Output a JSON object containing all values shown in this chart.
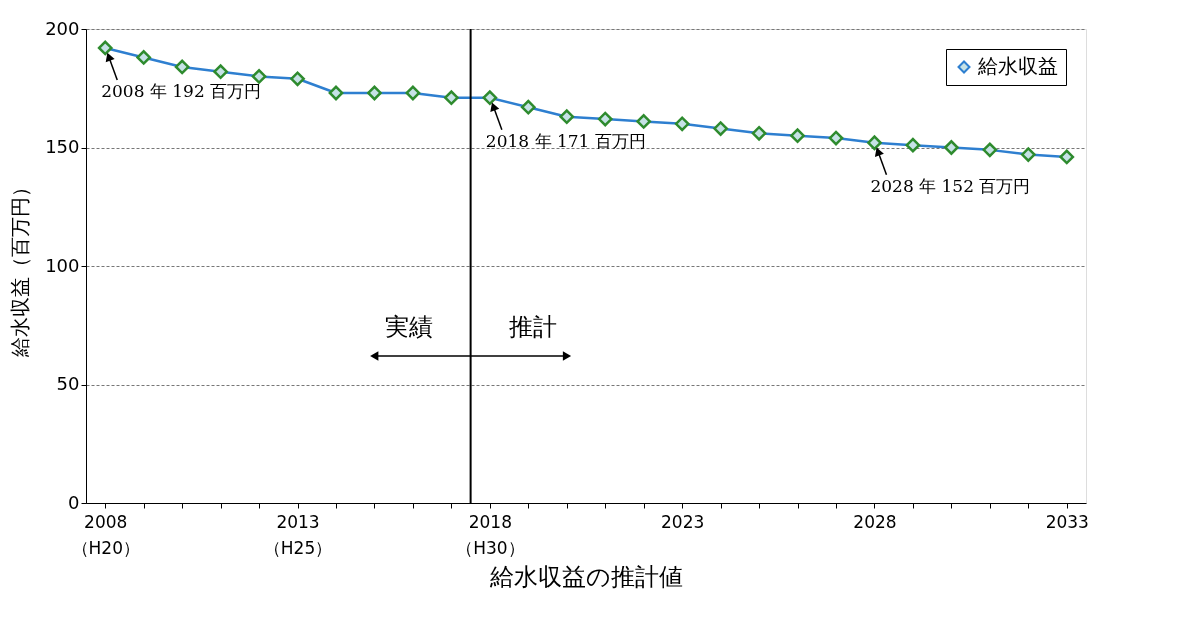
{
  "chart_data": {
    "type": "line",
    "title": "給水収益の推計値",
    "ylabel": "給水収益（百万円）",
    "x": [
      2008,
      2009,
      2010,
      2011,
      2012,
      2013,
      2014,
      2015,
      2016,
      2017,
      2018,
      2019,
      2020,
      2021,
      2022,
      2023,
      2024,
      2025,
      2026,
      2027,
      2028,
      2029,
      2030,
      2031,
      2032,
      2033
    ],
    "series": [
      {
        "name": "給水収益",
        "color": "#2e7fd0",
        "values": [
          192,
          188,
          184,
          182,
          180,
          179,
          173,
          173,
          173,
          171,
          171,
          167,
          163,
          162,
          161,
          160,
          158,
          156,
          155,
          154,
          152,
          151,
          150,
          149,
          147,
          146
        ]
      }
    ],
    "xlim": [
      2007.5,
      2033.5
    ],
    "xticks": [
      {
        "value": 2008,
        "label": "2008\n（H20）"
      },
      {
        "value": 2009,
        "label": null
      },
      {
        "value": 2010,
        "label": null
      },
      {
        "value": 2011,
        "label": null
      },
      {
        "value": 2012,
        "label": null
      },
      {
        "value": 2013,
        "label": "2013\n（H25）"
      },
      {
        "value": 2014,
        "label": null
      },
      {
        "value": 2015,
        "label": null
      },
      {
        "value": 2016,
        "label": null
      },
      {
        "value": 2017,
        "label": null
      },
      {
        "value": 2018,
        "label": "2018\n（H30）"
      },
      {
        "value": 2019,
        "label": null
      },
      {
        "value": 2020,
        "label": null
      },
      {
        "value": 2021,
        "label": null
      },
      {
        "value": 2022,
        "label": null
      },
      2023,
      {
        "value": 2024,
        "label": null
      },
      {
        "value": 2025,
        "label": null
      },
      {
        "value": 2026,
        "label": null
      },
      {
        "value": 2027,
        "label": null
      },
      2028,
      {
        "value": 2029,
        "label": null
      },
      {
        "value": 2030,
        "label": null
      },
      {
        "value": 2031,
        "label": null
      },
      {
        "value": 2032,
        "label": null
      },
      2033
    ],
    "ylim": [
      0,
      200
    ],
    "yticks": [
      0,
      50,
      100,
      150,
      200
    ],
    "grid": "y",
    "legend": "top right",
    "marker": "diamond",
    "line_style": "solid",
    "ref_lines": [
      {
        "axis": "x",
        "value": 2017.5,
        "color": "#000000",
        "line_style": "solid"
      }
    ],
    "annotations": [
      {
        "text": "2008 年 192 百万円",
        "x": 2008,
        "y": 192
      },
      {
        "text": "2018 年 171 百万円",
        "x": 2018,
        "y": 171
      },
      {
        "text": "2028 年 152 百万円",
        "x": 2028,
        "y": 152
      },
      "実績",
      "推計"
    ]
  }
}
